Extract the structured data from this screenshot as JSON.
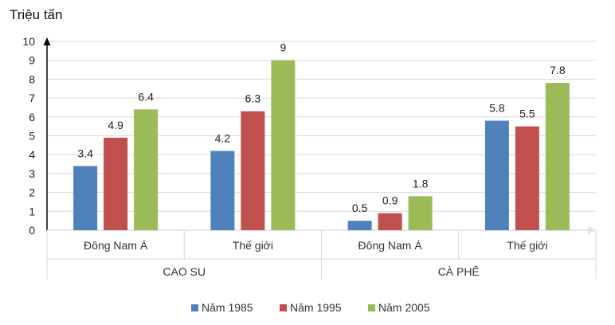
{
  "chart_data": {
    "type": "bar",
    "title": "",
    "ylabel": "Triệu tấn",
    "xlabel": "",
    "ylim": [
      0,
      10
    ],
    "yticks": [
      0,
      1,
      2,
      3,
      4,
      5,
      6,
      7,
      8,
      9,
      10
    ],
    "groups": [
      {
        "label": "CAO SU",
        "categories": [
          "Đông Nam Á",
          "Thế giới"
        ]
      },
      {
        "label": "CÀ PHÊ",
        "categories": [
          "Đông Nam Á",
          "Thế giới"
        ]
      }
    ],
    "categories": [
      "Đông Nam Á",
      "Thế giới",
      "Đông Nam Á",
      "Thế giới"
    ],
    "series": [
      {
        "name": "Năm 1985",
        "color": "#4F81BD",
        "values": [
          3.4,
          4.2,
          0.5,
          5.8
        ]
      },
      {
        "name": "Năm 1995",
        "color": "#C0504D",
        "values": [
          4.9,
          6.3,
          0.9,
          5.5
        ]
      },
      {
        "name": "Năm 2005",
        "color": "#9BBB59",
        "values": [
          6.4,
          9,
          1.8,
          7.8
        ]
      }
    ],
    "gridlines": true,
    "legend_position": "bottom"
  }
}
